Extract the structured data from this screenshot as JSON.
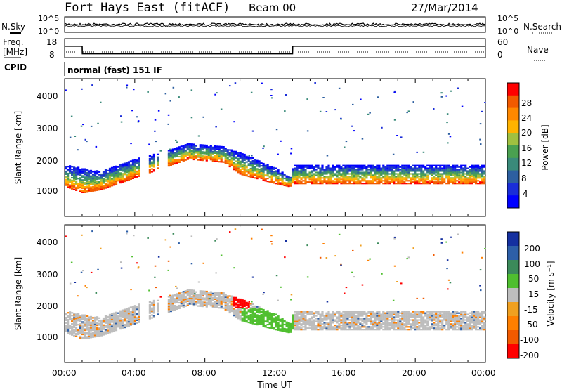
{
  "header": {
    "station": "Fort Hays East (fitACF)",
    "beam": "Beam 00",
    "date": "27/Mar/2014"
  },
  "noise_panel": {
    "left_label": "N.Sky",
    "right_label": "N.Search",
    "left_ticks": [
      "10^5",
      "10^0"
    ],
    "right_ticks": [
      "10^5",
      "10^0"
    ]
  },
  "freq_panel": {
    "left_label_1": "Freq.",
    "left_label_2": "[MHz]",
    "right_label": "Nave",
    "left_ticks": [
      "18",
      "8"
    ],
    "right_ticks": [
      "60",
      "0"
    ]
  },
  "cpid": {
    "label": "CPID",
    "text": "normal (fast) 151 IF"
  },
  "x_axis": {
    "ticks": [
      "00:00",
      "04:00",
      "08:00",
      "12:00",
      "16:00",
      "20:00",
      "00:00"
    ],
    "label": "Time UT"
  },
  "power_panel": {
    "ylabel": "Slant Range [km]",
    "yticks": [
      "4000",
      "3000",
      "2000",
      "1000"
    ],
    "colorbar_label": "Power [dB]",
    "colorbar_ticks": [
      "28",
      "24",
      "20",
      "16",
      "12",
      "8",
      "4"
    ],
    "colors": [
      "#ff0000",
      "#f25a00",
      "#ff8800",
      "#ffb300",
      "#a0c040",
      "#4aa050",
      "#3a8a7a",
      "#2d5fa0",
      "#1a2dd8",
      "#0000ff"
    ]
  },
  "velocity_panel": {
    "ylabel": "Slant Range [km]",
    "yticks": [
      "4000",
      "3000",
      "2000",
      "1000"
    ],
    "colorbar_label": "Velocity [m s⁻¹]",
    "colorbar_ticks": [
      "200",
      "100",
      "50",
      "15",
      "-15",
      "-50",
      "-100",
      "-200"
    ],
    "colors": [
      "#1530a0",
      "#2d5fa8",
      "#3b8a5a",
      "#4fbf2f",
      "#bdbdbd",
      "#f0a020",
      "#ff7f00",
      "#f25a00",
      "#ff0000"
    ]
  },
  "chart_data": [
    {
      "type": "heatmap",
      "title": "Power",
      "xlabel": "Time UT",
      "ylabel": "Slant Range [km]",
      "xlim": [
        0,
        24
      ],
      "ylim": [
        0,
        4500
      ],
      "colorbar": {
        "label": "Power [dB]",
        "range": [
          0,
          32
        ]
      },
      "features": [
        {
          "name": "main-band",
          "t": [
            0,
            1,
            2,
            4,
            6,
            7,
            9,
            10,
            12,
            12.8,
            13,
            16,
            20,
            24
          ],
          "range_lo": [
            1000,
            800,
            900,
            1300,
            1700,
            1900,
            1800,
            1400,
            1100,
            1000,
            1100,
            1100,
            1100,
            1100
          ],
          "range_hi": [
            1700,
            1600,
            1500,
            1900,
            2200,
            2400,
            2300,
            2100,
            1600,
            1300,
            1700,
            1700,
            1700,
            1700
          ]
        }
      ]
    },
    {
      "type": "heatmap",
      "title": "Velocity",
      "xlabel": "Time UT",
      "ylabel": "Slant Range [km]",
      "xlim": [
        0,
        24
      ],
      "ylim": [
        0,
        4500
      ],
      "colorbar": {
        "label": "Velocity [m s⁻¹]",
        "range": [
          -200,
          200
        ]
      }
    },
    {
      "type": "line",
      "title": "Freq.",
      "x": [
        0,
        1,
        1.01,
        13,
        13.01,
        24
      ],
      "y": [
        14,
        14,
        10,
        10,
        14,
        14
      ],
      "ylim": [
        8,
        18
      ]
    }
  ]
}
